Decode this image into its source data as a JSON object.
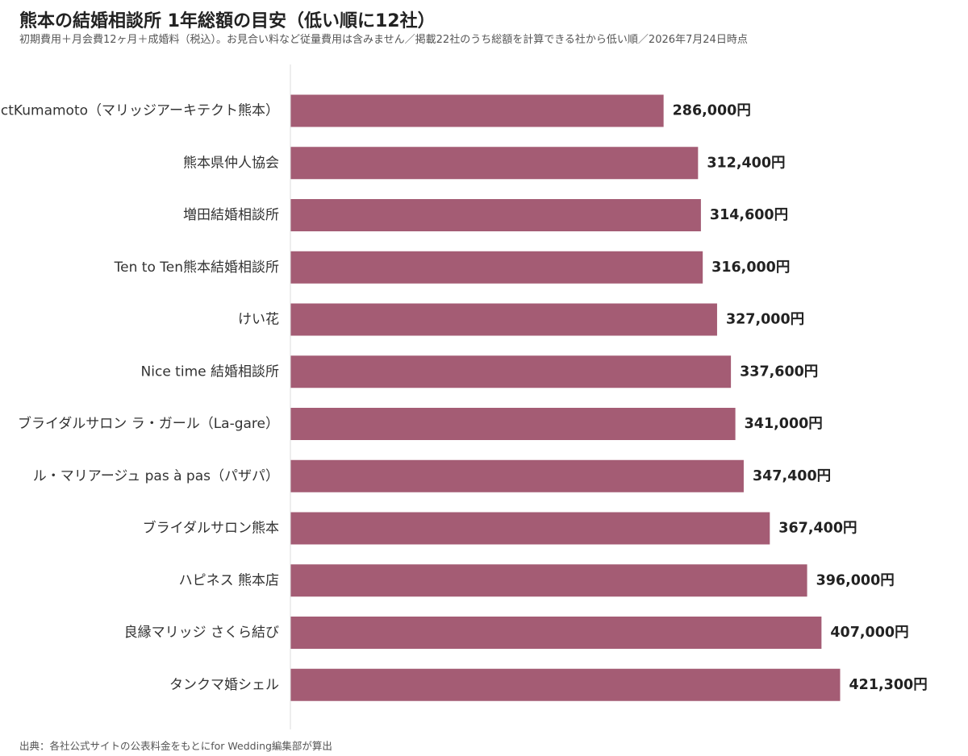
{
  "title": "熊本の結婚相談所 1年総額の目安（低い順に12社）",
  "subtitle": "初期費用＋月会費12ヶ月＋成婚料（税込）。お見合い料など従量費用は含みません／掲載22社のうち総額を計算できる社から低い順／2026年7月24日時点",
  "source": "出典：各社公式サイトの公表料金をもとにfor Wedding編集部が算出",
  "colors": {
    "bar": "#a45c74",
    "axis": "#dddddd"
  },
  "chart_data": {
    "type": "bar",
    "orientation": "horizontal",
    "categories": [
      "MarriageArchitectKumamoto（マリッジアーキテクト熊本）",
      "熊本県仲人協会",
      "増田結婚相談所",
      "Ten to Ten熊本結婚相談所",
      "けい花",
      "Nice time 結婚相談所",
      "ブライダルサロン ラ・ガール（La-gare）",
      "ル・マリアージュ pas à pas（パザパ）",
      "ブライダルサロン熊本",
      "ハピネス 熊本店",
      "良縁マリッジ さくら結び",
      "タンクマ婚シェル"
    ],
    "values": [
      286000,
      312400,
      314600,
      316000,
      327000,
      337600,
      341000,
      347400,
      367400,
      396000,
      407000,
      421300
    ],
    "value_labels": [
      "286,000円",
      "312,400円",
      "314,600円",
      "316,000円",
      "327,000円",
      "337,600円",
      "341,000円",
      "347,400円",
      "367,400円",
      "396,000円",
      "407,000円",
      "421,300円"
    ],
    "unit": "円",
    "xlim": [
      0,
      507000
    ],
    "grid": false,
    "legend": "none",
    "title": "熊本の結婚相談所 1年総額の目安（低い順に12社）",
    "xlabel": "",
    "ylabel": ""
  }
}
